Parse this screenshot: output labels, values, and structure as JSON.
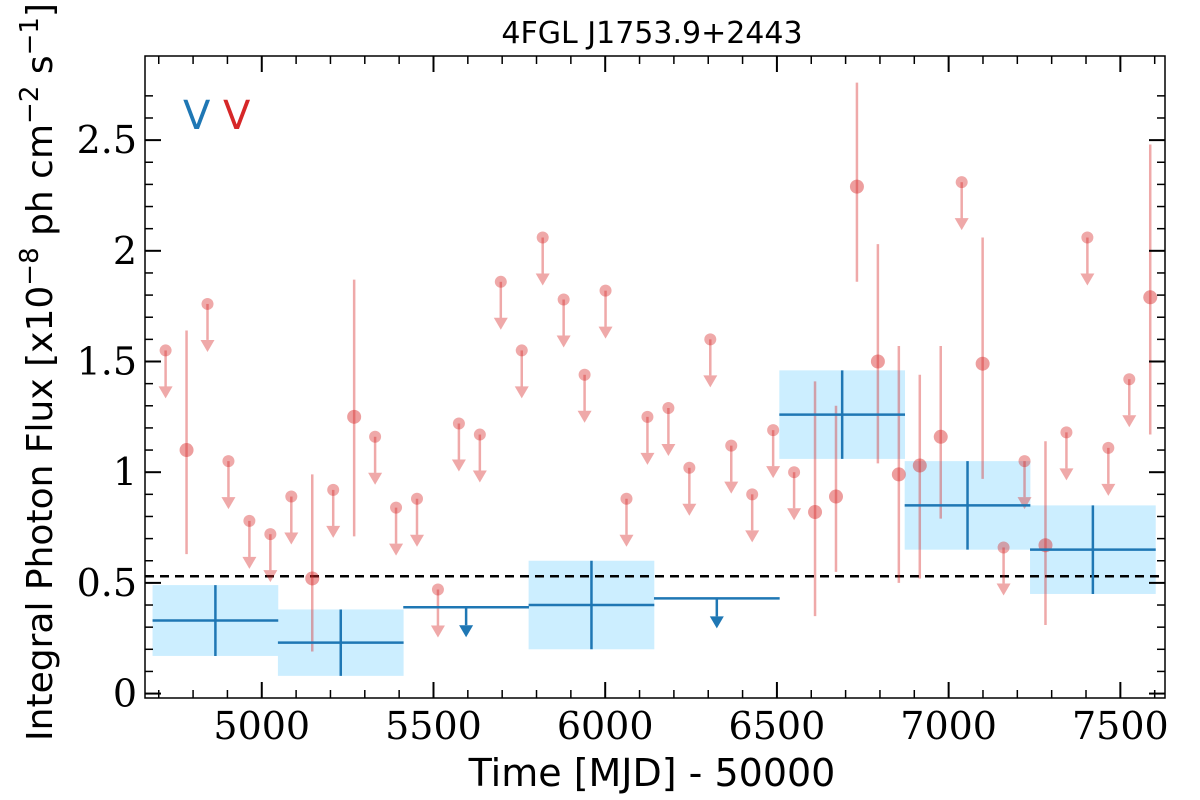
{
  "chart_data": {
    "type": "scatter",
    "title": "4FGL J1753.9+2443",
    "xlabel": "Time [MJD] - 50000",
    "ylabel": "Integral Photon Flux [x10",
    "ylabel_exp1": "−8",
    "ylabel_mid": " ph cm",
    "ylabel_exp2": "−2",
    "ylabel_end": " s",
    "ylabel_exp3": "−1",
    "ylabel_close": "]",
    "xlim": [
      4660,
      7630
    ],
    "ylim": [
      -0.02,
      2.88
    ],
    "xticks": [
      5000,
      5500,
      6000,
      6500,
      7000,
      7500
    ],
    "xtick_labels": [
      "5000",
      "5500",
      "6000",
      "6500",
      "7000",
      "7500"
    ],
    "yticks": [
      0,
      0.5,
      1,
      1.5,
      2,
      2.5
    ],
    "ytick_labels": [
      "0",
      "0.5",
      "1",
      "1.5",
      "2",
      "2.5"
    ],
    "grid": false,
    "legend": {
      "placement": "top-left",
      "entries": [
        {
          "label": "V",
          "color": "#1f77b4"
        },
        {
          "label": "V",
          "color": "#d62728"
        }
      ]
    },
    "reference_lines": [
      {
        "y": 0.53,
        "style": "dashed",
        "color": "#000000"
      }
    ],
    "series": [
      {
        "kind": "long-bins",
        "color": "#1f77b4",
        "band_color": "#cceeff",
        "points": [
          {
            "x": 4865,
            "xerr": 183,
            "y": 0.33,
            "yerr": 0.16
          },
          {
            "x": 5230,
            "xerr": 183,
            "y": 0.23,
            "yerr": 0.15
          },
          {
            "x": 5595,
            "xerr": 183,
            "y": 0.39,
            "upper_limit": true
          },
          {
            "x": 5960,
            "xerr": 183,
            "y": 0.4,
            "yerr": 0.2
          },
          {
            "x": 6325,
            "xerr": 183,
            "y": 0.43,
            "upper_limit": true
          },
          {
            "x": 6690,
            "xerr": 183,
            "y": 1.26,
            "yerr": 0.2
          },
          {
            "x": 7055,
            "xerr": 183,
            "y": 0.85,
            "yerr": 0.2
          },
          {
            "x": 7420,
            "xerr": 183,
            "y": 0.65,
            "yerr": 0.2
          }
        ]
      },
      {
        "kind": "short-bins",
        "color": "#d62728",
        "points": [
          {
            "x": 4720,
            "y": 1.55,
            "upper_limit": true
          },
          {
            "x": 4781,
            "y": 1.1,
            "ylow": 0.63,
            "yhigh": 1.64
          },
          {
            "x": 4842,
            "y": 1.76,
            "upper_limit": true
          },
          {
            "x": 4903,
            "y": 1.05,
            "upper_limit": true
          },
          {
            "x": 4964,
            "y": 0.78,
            "upper_limit": true
          },
          {
            "x": 5025,
            "y": 0.72,
            "upper_limit": true
          },
          {
            "x": 5086,
            "y": 0.89,
            "upper_limit": true
          },
          {
            "x": 5147,
            "y": 0.52,
            "ylow": 0.19,
            "yhigh": 0.99
          },
          {
            "x": 5208,
            "y": 0.92,
            "upper_limit": true
          },
          {
            "x": 5269,
            "y": 1.25,
            "ylow": 0.71,
            "yhigh": 1.87
          },
          {
            "x": 5330,
            "y": 1.16,
            "upper_limit": true
          },
          {
            "x": 5391,
            "y": 0.84,
            "upper_limit": true
          },
          {
            "x": 5452,
            "y": 0.88,
            "upper_limit": true
          },
          {
            "x": 5513,
            "y": 0.47,
            "upper_limit": true
          },
          {
            "x": 5574,
            "y": 1.22,
            "upper_limit": true
          },
          {
            "x": 5635,
            "y": 1.17,
            "upper_limit": true
          },
          {
            "x": 5696,
            "y": 1.86,
            "upper_limit": true
          },
          {
            "x": 5757,
            "y": 1.55,
            "upper_limit": true
          },
          {
            "x": 5818,
            "y": 2.06,
            "upper_limit": true
          },
          {
            "x": 5879,
            "y": 1.78,
            "upper_limit": true
          },
          {
            "x": 5940,
            "y": 1.44,
            "upper_limit": true
          },
          {
            "x": 6001,
            "y": 1.82,
            "upper_limit": true
          },
          {
            "x": 6062,
            "y": 0.88,
            "upper_limit": true
          },
          {
            "x": 6123,
            "y": 1.25,
            "upper_limit": true
          },
          {
            "x": 6184,
            "y": 1.29,
            "upper_limit": true
          },
          {
            "x": 6245,
            "y": 1.02,
            "upper_limit": true
          },
          {
            "x": 6306,
            "y": 1.6,
            "upper_limit": true
          },
          {
            "x": 6367,
            "y": 1.12,
            "upper_limit": true
          },
          {
            "x": 6428,
            "y": 0.9,
            "upper_limit": true
          },
          {
            "x": 6489,
            "y": 1.19,
            "upper_limit": true
          },
          {
            "x": 6550,
            "y": 1.0,
            "upper_limit": true
          },
          {
            "x": 6611,
            "y": 0.82,
            "ylow": 0.35,
            "yhigh": 1.41
          },
          {
            "x": 6672,
            "y": 0.89,
            "ylow": 0.55,
            "yhigh": 1.3
          },
          {
            "x": 6733,
            "y": 2.29,
            "ylow": 1.86,
            "yhigh": 2.76
          },
          {
            "x": 6794,
            "y": 1.5,
            "ylow": 1.04,
            "yhigh": 2.03
          },
          {
            "x": 6855,
            "y": 0.99,
            "ylow": 0.5,
            "yhigh": 1.57
          },
          {
            "x": 6916,
            "y": 1.03,
            "ylow": 0.52,
            "yhigh": 1.44
          },
          {
            "x": 6977,
            "y": 1.16,
            "ylow": 0.79,
            "yhigh": 1.57
          },
          {
            "x": 7038,
            "y": 2.31,
            "upper_limit": true
          },
          {
            "x": 7099,
            "y": 1.49,
            "ylow": 0.97,
            "yhigh": 2.06
          },
          {
            "x": 7160,
            "y": 0.66,
            "upper_limit": true
          },
          {
            "x": 7221,
            "y": 1.05,
            "upper_limit": true
          },
          {
            "x": 7282,
            "y": 0.67,
            "ylow": 0.31,
            "yhigh": 1.14
          },
          {
            "x": 7343,
            "y": 1.18,
            "upper_limit": true
          },
          {
            "x": 7404,
            "y": 2.06,
            "upper_limit": true
          },
          {
            "x": 7465,
            "y": 1.11,
            "upper_limit": true
          },
          {
            "x": 7526,
            "y": 1.42,
            "upper_limit": true
          },
          {
            "x": 7587,
            "y": 1.79,
            "ylow": 1.17,
            "yhigh": 2.48
          }
        ]
      }
    ]
  }
}
